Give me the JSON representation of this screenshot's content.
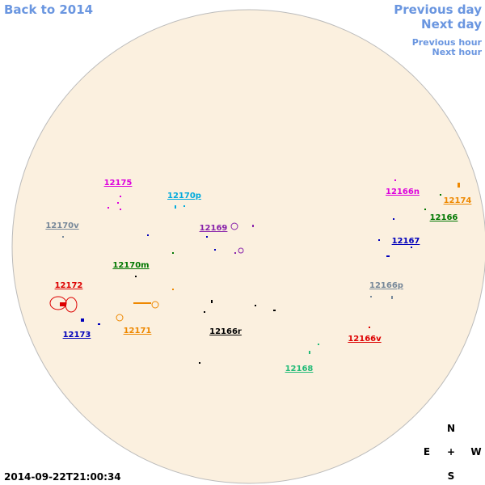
{
  "nav": {
    "back": "Back to 2014",
    "prev_day": "Previous day",
    "next_day": "Next day",
    "prev_hour": "Previous hour",
    "next_hour": "Next hour"
  },
  "regions": [
    {
      "label": "12175",
      "color": "#dd00dd"
    },
    {
      "label": "12170p",
      "color": "#00aadd"
    },
    {
      "label": "12170v",
      "color": "#778899"
    },
    {
      "label": "12169",
      "color": "#8822aa"
    },
    {
      "label": "12166n",
      "color": "#dd00dd"
    },
    {
      "label": "12174",
      "color": "#ee8800"
    },
    {
      "label": "12166",
      "color": "#007700"
    },
    {
      "label": "12167",
      "color": "#0000bb"
    },
    {
      "label": "12170m",
      "color": "#007700"
    },
    {
      "label": "12172",
      "color": "#dd0000"
    },
    {
      "label": "12166p",
      "color": "#778899"
    },
    {
      "label": "12173",
      "color": "#0000bb"
    },
    {
      "label": "12171",
      "color": "#ee8800"
    },
    {
      "label": "12166r",
      "color": "#000000"
    },
    {
      "label": "12166v",
      "color": "#dd0000"
    },
    {
      "label": "12168",
      "color": "#22bb77"
    }
  ],
  "compass": {
    "north": "N",
    "east": "E",
    "center": "+",
    "west": "W",
    "south": "S"
  },
  "timestamp": "2014-09-22T21:00:34"
}
